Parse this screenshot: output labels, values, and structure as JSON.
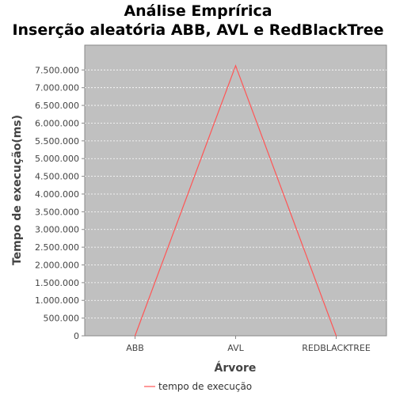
{
  "chart_data": {
    "type": "line",
    "title_lines": [
      "Análise Emprírica",
      "Inserção aleatória ABB, AVL e RedBlackTree"
    ],
    "xlabel": "Árvore",
    "ylabel": "Tempo de execução(ms)",
    "categories": [
      "ABB",
      "AVL",
      "REDBLACKTREE"
    ],
    "series": [
      {
        "name": "tempo de execução",
        "color": "#ff5555",
        "values": [
          0,
          7620000,
          0
        ]
      }
    ],
    "ylim": [
      0,
      8200000
    ],
    "yticks": [
      0,
      500000,
      1000000,
      1500000,
      2000000,
      2500000,
      3000000,
      3500000,
      4000000,
      4500000,
      5000000,
      5500000,
      6000000,
      6500000,
      7000000,
      7500000
    ],
    "ytick_labels": [
      "0",
      "500.000",
      "1.000.000",
      "1.500.000",
      "2.000.000",
      "2.500.000",
      "3.000.000",
      "3.500.000",
      "4.000.000",
      "4.500.000",
      "5.000.000",
      "5.500.000",
      "6.000.000",
      "6.500.000",
      "7.000.000",
      "7.500.000"
    ],
    "grid": true,
    "legend_position": "bottom",
    "plot_background": "#c0c0c0"
  }
}
